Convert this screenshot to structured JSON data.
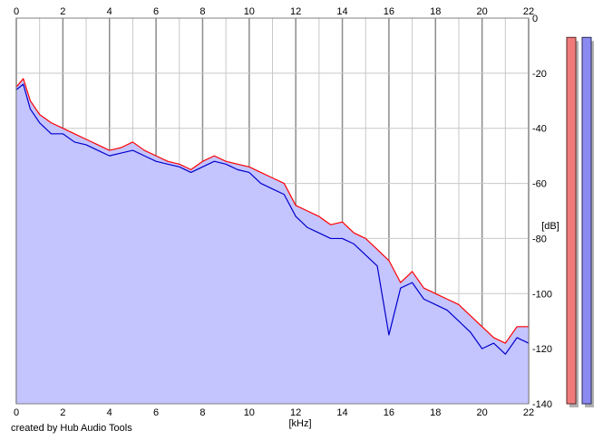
{
  "footer": {
    "credit": "created by Hub Audio Tools"
  },
  "colors": {
    "background": "#ffffff",
    "fill": "#c4c4ff",
    "left_channel": "#ff0000",
    "right_channel": "#0000cc",
    "grid": "#c8c8c8",
    "grid_major": "#8c8c8c",
    "meter_left": "#f07a7a",
    "meter_right": "#8a8af0"
  },
  "chart_data": {
    "type": "line",
    "xlabel": "[kHz]",
    "ylabel": "[dB]",
    "xlim": [
      0,
      22
    ],
    "ylim": [
      -140,
      0
    ],
    "x_ticks": [
      0,
      2,
      4,
      6,
      8,
      10,
      12,
      14,
      16,
      18,
      20,
      22
    ],
    "y_ticks": [
      0,
      -20,
      -40,
      -60,
      -80,
      -100,
      -120,
      -140
    ],
    "grid": true,
    "area_fill": true,
    "series": [
      {
        "color": "#ff0000",
        "x": [
          0,
          0.3,
          0.6,
          1,
          1.5,
          2,
          2.5,
          3,
          3.5,
          4,
          4.5,
          5,
          5.5,
          6,
          6.5,
          7,
          7.5,
          8,
          8.5,
          9,
          9.5,
          10,
          10.5,
          11,
          11.5,
          12,
          12.5,
          13,
          13.5,
          14,
          14.5,
          15,
          15.5,
          16,
          16.5,
          17,
          17.5,
          18,
          18.5,
          19,
          19.5,
          20,
          20.5,
          21,
          21.5,
          22
        ],
        "values": [
          -25,
          -22,
          -30,
          -35,
          -38,
          -40,
          -42,
          -44,
          -46,
          -48,
          -47,
          -45,
          -48,
          -50,
          -52,
          -53,
          -55,
          -52,
          -50,
          -52,
          -53,
          -54,
          -56,
          -58,
          -60,
          -68,
          -70,
          -72,
          -75,
          -74,
          -78,
          -80,
          -84,
          -88,
          -96,
          -92,
          -98,
          -100,
          -102,
          -104,
          -108,
          -112,
          -116,
          -118,
          -112,
          -112
        ]
      },
      {
        "color": "#0000cc",
        "x": [
          0,
          0.3,
          0.6,
          1,
          1.5,
          2,
          2.5,
          3,
          3.5,
          4,
          4.5,
          5,
          5.5,
          6,
          6.5,
          7,
          7.5,
          8,
          8.5,
          9,
          9.5,
          10,
          10.5,
          11,
          11.5,
          12,
          12.5,
          13,
          13.5,
          14,
          14.5,
          15,
          15.5,
          16,
          16.5,
          17,
          17.5,
          18,
          18.5,
          19,
          19.5,
          20,
          20.5,
          21,
          21.5,
          22
        ],
        "values": [
          -26,
          -24,
          -33,
          -38,
          -42,
          -42,
          -45,
          -46,
          -48,
          -50,
          -49,
          -48,
          -50,
          -52,
          -53,
          -54,
          -56,
          -54,
          -52,
          -53,
          -55,
          -56,
          -60,
          -62,
          -64,
          -72,
          -76,
          -78,
          -80,
          -80,
          -82,
          -86,
          -90,
          -115,
          -98,
          -96,
          -102,
          -104,
          -106,
          -110,
          -114,
          -120,
          -118,
          -122,
          -116,
          -118
        ]
      }
    ],
    "meters": {
      "left_level": -7,
      "right_level": -7
    }
  }
}
